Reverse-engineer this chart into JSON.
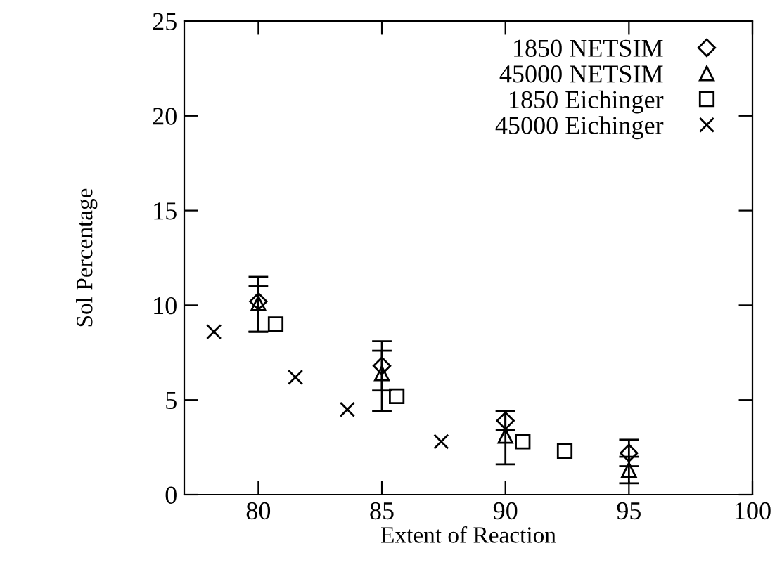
{
  "chart_data": {
    "type": "scatter",
    "xlabel": "Extent of Reaction",
    "ylabel": "Sol Percentage",
    "xlim": [
      77,
      100
    ],
    "xticks": [
      80,
      85,
      90,
      95,
      100
    ],
    "ylim": [
      0,
      25
    ],
    "yticks": [
      0,
      5,
      10,
      15,
      20,
      25
    ],
    "grid": false,
    "legend": "top right",
    "series": [
      {
        "name": "1850 NETSIM",
        "color": "#000000",
        "marker": "diamond",
        "x": [
          80,
          85,
          90,
          95
        ],
        "values": [
          10.2,
          6.8,
          3.9,
          2.2
        ],
        "errors": [
          [
            8.6,
            11.5
          ],
          [
            5.5,
            8.1
          ],
          [
            3.4,
            4.4
          ],
          [
            1.5,
            2.9
          ]
        ]
      },
      {
        "name": "45000 NETSIM",
        "color": "#000000",
        "marker": "triangle",
        "x": [
          80,
          85,
          90,
          95
        ],
        "values": [
          10.1,
          6.4,
          3.1,
          1.3
        ],
        "errors": [
          [
            8.6,
            11.0
          ],
          [
            4.4,
            7.6
          ],
          [
            1.6,
            4.4
          ],
          [
            0.6,
            2.0
          ]
        ]
      },
      {
        "name": "1850 Eichinger",
        "color": "#000000",
        "marker": "square",
        "x": [
          80.7,
          85.6,
          90.7,
          92.4
        ],
        "values": [
          9.0,
          5.2,
          2.8,
          2.3
        ]
      },
      {
        "name": "45000 Eichinger",
        "color": "#000000",
        "marker": "cross",
        "x": [
          78.2,
          81.5,
          83.6,
          87.4
        ],
        "values": [
          8.6,
          6.2,
          4.5,
          2.8
        ]
      }
    ]
  }
}
